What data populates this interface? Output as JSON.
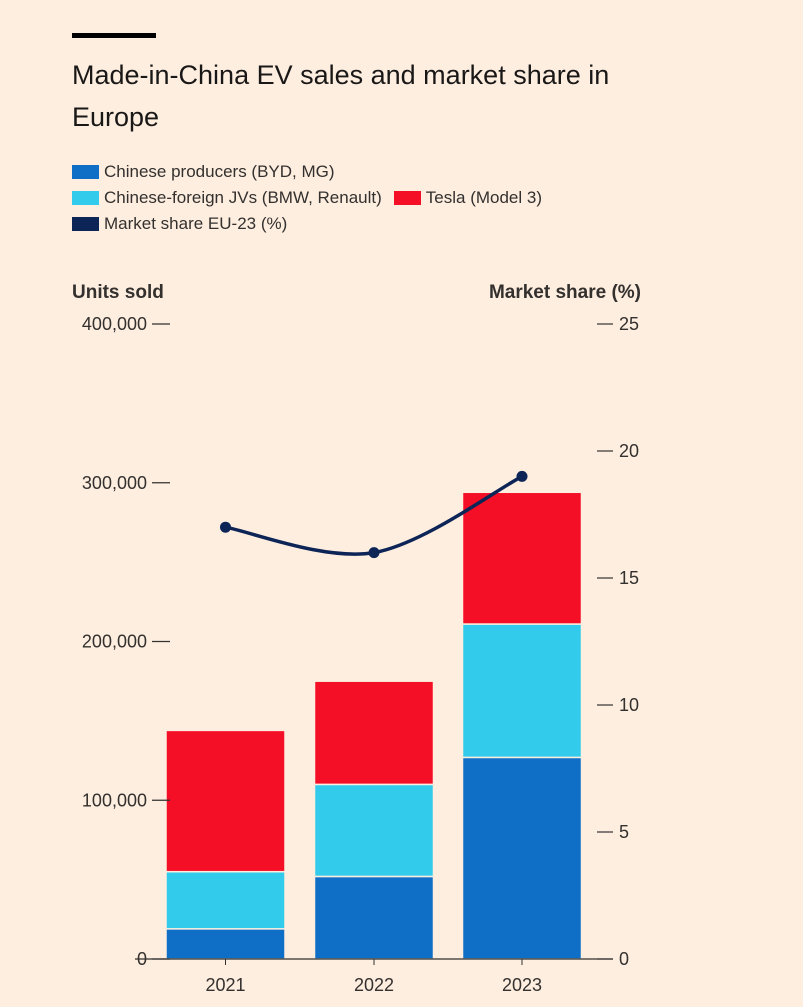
{
  "title": "Made-in-China EV sales and market share in Europe",
  "legend": [
    {
      "label": "Chinese producers (BYD, MG)",
      "color": "#0f6fc6"
    },
    {
      "label": "Chinese-foreign JVs (BMW, Renault)",
      "color": "#33cbeb"
    },
    {
      "label": "Tesla (Model 3)",
      "color": "#f50f26"
    },
    {
      "label": "Market share EU-23 (%)",
      "color": "#0d2457"
    }
  ],
  "chart_data": {
    "type": "bar",
    "stacked": true,
    "title": "Made-in-China EV sales and market share in Europe",
    "ylabel": "Units sold",
    "y2label": "Market share (%)",
    "categories": [
      "2021",
      "2022",
      "2023"
    ],
    "ylim": [
      0,
      400000
    ],
    "y2lim": [
      0,
      25
    ],
    "yticks": [
      "0",
      "100,000",
      "200,000",
      "300,000",
      "400,000"
    ],
    "ytick_values": [
      0,
      100000,
      200000,
      300000,
      400000
    ],
    "y2ticks": [
      "0",
      "5",
      "10",
      "15",
      "20",
      "25"
    ],
    "y2tick_values": [
      0,
      5,
      10,
      15,
      20,
      25
    ],
    "series": [
      {
        "name": "Chinese producers (BYD, MG)",
        "values": [
          19000,
          52000,
          127000
        ],
        "color": "#0f6fc6"
      },
      {
        "name": "Chinese-foreign JVs (BMW, Renault)",
        "values": [
          36000,
          58000,
          84000
        ],
        "color": "#33cbeb"
      },
      {
        "name": "Tesla (Model 3)",
        "values": [
          89000,
          65000,
          83000
        ],
        "color": "#f50f26"
      }
    ],
    "line_series": {
      "name": "Market share EU-23 (%)",
      "values": [
        17.0,
        16.0,
        19.0
      ],
      "axis": "right",
      "color": "#0d2457"
    },
    "grid": false,
    "legend_position": "top-left"
  }
}
